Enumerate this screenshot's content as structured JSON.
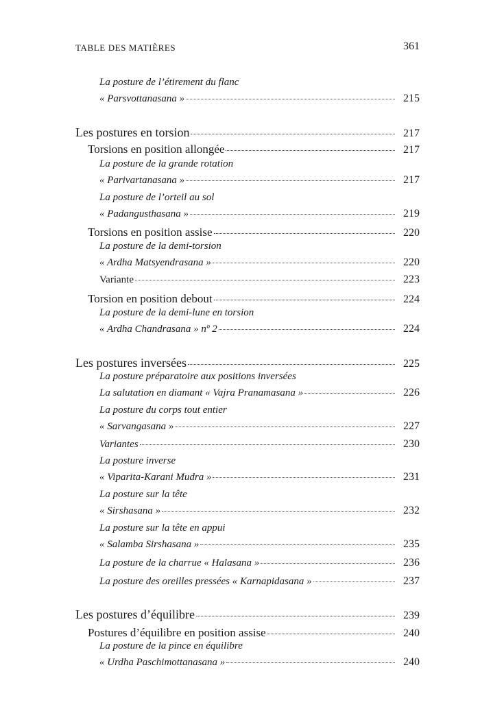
{
  "header": {
    "title": "TABLE DES MATIÈRES",
    "page_number": "361"
  },
  "entries": [
    {
      "text": "La posture de l’étirement du flanc",
      "level": 3
    },
    {
      "text": "« Parsvottanasana »",
      "page": "215",
      "level": 3
    },
    {
      "text": "Les postures en torsion",
      "page": "217",
      "level": 1
    },
    {
      "text": "Torsions en position allongée",
      "page": "217",
      "level": 2
    },
    {
      "text": "La posture de la grande rotation",
      "level": 3
    },
    {
      "text": "« Parivartanasana »",
      "page": "217",
      "level": 3
    },
    {
      "text": "La posture de l’orteil au sol",
      "level": 3
    },
    {
      "text": "« Padangusthasana »",
      "page": "219",
      "level": 3
    },
    {
      "text": "Torsions en position assise",
      "page": "220",
      "level": 2
    },
    {
      "text": "La posture de la demi-torsion",
      "level": 3
    },
    {
      "text": "« Ardha Matsyendrasana »",
      "page": "220",
      "level": 3
    },
    {
      "text": "Variante",
      "page": "223",
      "level": "3u"
    },
    {
      "text": "Torsion en position debout",
      "page": "224",
      "level": 2
    },
    {
      "text": "La posture de la demi-lune en torsion",
      "level": 3
    },
    {
      "text": "« Ardha Chandrasana » nº 2",
      "page": "224",
      "level": 3
    },
    {
      "text": "Les postures inversées",
      "page": "225",
      "level": 1
    },
    {
      "text": "La posture préparatoire aux positions inversées",
      "level": 3
    },
    {
      "text": "La salutation en diamant « Vajra Pranamasana »",
      "page": "226",
      "level": 3
    },
    {
      "text": "La posture du corps tout entier",
      "level": 3
    },
    {
      "text": "« Sarvangasana »",
      "page": "227",
      "level": 3
    },
    {
      "text": "Variantes",
      "page": "230",
      "level": 3
    },
    {
      "text": "La posture inverse",
      "level": 3
    },
    {
      "text": "« Viparita-Karani Mudra »",
      "page": "231",
      "level": 3
    },
    {
      "text": "La posture sur la tête",
      "level": 3
    },
    {
      "text": "« Sirshasana »",
      "page": "232",
      "level": 3
    },
    {
      "text": "La posture sur la tête en appui",
      "level": 3
    },
    {
      "text": "« Salamba Sirshasana »",
      "page": "235",
      "level": 3
    },
    {
      "text": "La posture de la charrue « Halasana »",
      "page": "236",
      "level": 3
    },
    {
      "text": "La posture des oreilles pressées « Karnapidasana »",
      "page": "237",
      "level": 3
    },
    {
      "text": "Les postures d’équilibre",
      "page": "239",
      "level": 1
    },
    {
      "text": "Postures d’équilibre en position assise",
      "page": "240",
      "level": 2
    },
    {
      "text": "La posture de la pince en équilibre",
      "level": 3
    },
    {
      "text": "« Urdha Paschimottanasana »",
      "page": "240",
      "level": 3
    }
  ]
}
